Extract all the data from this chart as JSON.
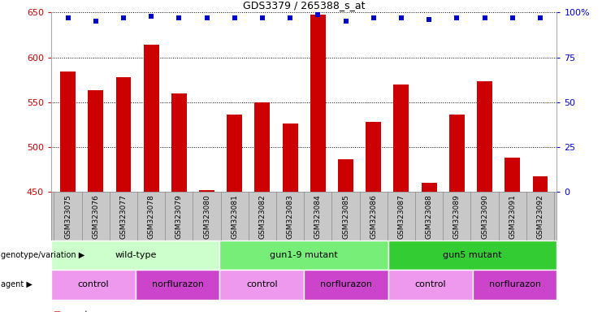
{
  "title": "GDS3379 / 265388_s_at",
  "samples": [
    "GSM323075",
    "GSM323076",
    "GSM323077",
    "GSM323078",
    "GSM323079",
    "GSM323080",
    "GSM323081",
    "GSM323082",
    "GSM323083",
    "GSM323084",
    "GSM323085",
    "GSM323086",
    "GSM323087",
    "GSM323088",
    "GSM323089",
    "GSM323090",
    "GSM323091",
    "GSM323092"
  ],
  "counts": [
    584,
    563,
    578,
    614,
    560,
    452,
    536,
    550,
    526,
    648,
    486,
    528,
    570,
    460,
    536,
    573,
    488,
    467
  ],
  "percentile_ranks": [
    97,
    95,
    97,
    98,
    97,
    97,
    97,
    97,
    97,
    99,
    95,
    97,
    97,
    96,
    97,
    97,
    97,
    97
  ],
  "ylim_left": [
    450,
    650
  ],
  "ylim_right": [
    0,
    100
  ],
  "yticks_left": [
    450,
    500,
    550,
    600,
    650
  ],
  "yticks_right": [
    0,
    25,
    50,
    75,
    100
  ],
  "bar_color": "#cc0000",
  "dot_color": "#0000cc",
  "bar_width": 0.55,
  "genotype_groups": [
    {
      "label": "wild-type",
      "start": 0,
      "end": 5,
      "color": "#ccffcc"
    },
    {
      "label": "gun1-9 mutant",
      "start": 6,
      "end": 11,
      "color": "#77ee77"
    },
    {
      "label": "gun5 mutant",
      "start": 12,
      "end": 17,
      "color": "#33cc33"
    }
  ],
  "agent_groups": [
    {
      "label": "control",
      "start": 0,
      "end": 2,
      "color": "#ee99ee"
    },
    {
      "label": "norflurazon",
      "start": 3,
      "end": 5,
      "color": "#cc44cc"
    },
    {
      "label": "control",
      "start": 6,
      "end": 8,
      "color": "#ee99ee"
    },
    {
      "label": "norflurazon",
      "start": 9,
      "end": 11,
      "color": "#cc44cc"
    },
    {
      "label": "control",
      "start": 12,
      "end": 14,
      "color": "#ee99ee"
    },
    {
      "label": "norflurazon",
      "start": 15,
      "end": 17,
      "color": "#cc44cc"
    }
  ],
  "bg_color": "#ffffff",
  "names_bg_color": "#c8c8c8",
  "grid_color": "#000000",
  "left_tick_color": "#cc0000",
  "right_tick_color": "#0000cc"
}
